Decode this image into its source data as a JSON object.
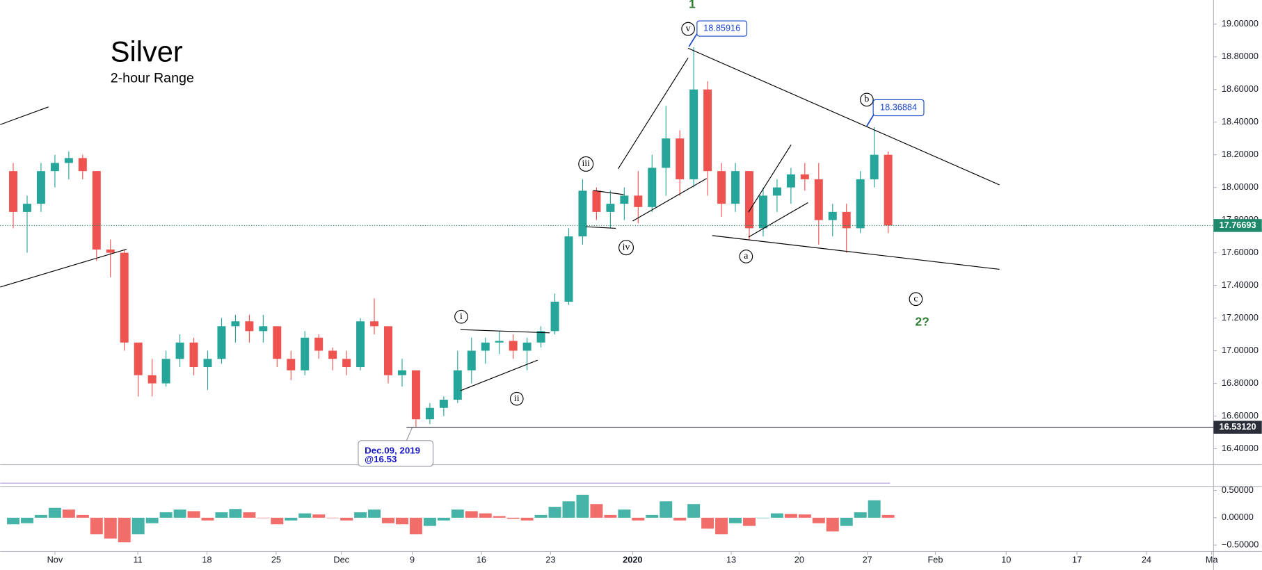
{
  "chart_data": {
    "type": "candlestick",
    "title": "Silver",
    "subtitle": "2-hour Range",
    "x": [
      -3,
      -2,
      -1,
      0,
      1,
      2,
      3,
      4,
      5,
      6,
      7,
      8,
      9,
      10,
      11,
      12,
      13,
      14,
      15,
      16,
      17,
      18,
      19,
      20,
      21,
      22,
      23,
      24,
      25,
      26,
      27,
      28,
      29,
      30,
      31,
      32,
      33,
      34,
      35,
      36,
      37,
      38,
      39,
      40,
      41,
      42,
      43,
      44,
      45,
      46,
      47,
      48,
      49,
      50,
      51,
      52,
      53,
      54,
      55,
      56,
      57,
      58,
      59,
      60
    ],
    "open": [
      18.1,
      17.85,
      17.9,
      18.1,
      18.15,
      18.18,
      18.1,
      17.62,
      17.6,
      17.05,
      16.85,
      16.8,
      16.95,
      17.05,
      16.9,
      16.95,
      17.15,
      17.18,
      17.12,
      17.15,
      16.95,
      16.88,
      17.08,
      17.0,
      16.95,
      16.9,
      17.18,
      17.15,
      16.85,
      16.88,
      16.58,
      16.65,
      16.7,
      16.88,
      17.0,
      17.05,
      17.06,
      17.0,
      17.05,
      17.12,
      17.3,
      17.7,
      17.98,
      17.85,
      17.9,
      17.95,
      17.88,
      18.12,
      18.3,
      18.05,
      18.6,
      18.1,
      17.9,
      18.1,
      17.75,
      17.95,
      18.0,
      18.08,
      18.05,
      17.8,
      17.85,
      17.75,
      18.05,
      18.2
    ],
    "high": [
      18.15,
      17.95,
      18.15,
      18.2,
      18.22,
      18.2,
      18.1,
      17.68,
      17.62,
      17.05,
      16.95,
      17.0,
      17.1,
      17.08,
      17.0,
      17.2,
      17.22,
      17.22,
      17.22,
      17.15,
      17.0,
      17.12,
      17.1,
      17.02,
      17.0,
      17.2,
      17.32,
      17.15,
      16.95,
      16.88,
      16.68,
      16.72,
      17.0,
      17.08,
      17.08,
      17.12,
      17.1,
      17.08,
      17.15,
      17.35,
      17.75,
      18.05,
      18.0,
      17.98,
      18.0,
      18.1,
      18.2,
      18.5,
      18.35,
      18.85916,
      18.65,
      18.15,
      18.15,
      18.1,
      18.0,
      18.05,
      18.12,
      18.15,
      18.15,
      17.9,
      17.9,
      18.1,
      18.36884,
      18.22
    ],
    "low": [
      17.75,
      17.6,
      17.85,
      18.0,
      18.05,
      18.05,
      17.55,
      17.45,
      17.0,
      16.72,
      16.72,
      16.78,
      16.9,
      16.85,
      16.76,
      16.92,
      17.05,
      17.05,
      17.05,
      16.9,
      16.82,
      16.85,
      16.95,
      16.88,
      16.85,
      16.88,
      17.1,
      16.8,
      16.78,
      16.53,
      16.55,
      16.6,
      16.68,
      16.8,
      16.92,
      16.98,
      16.95,
      16.88,
      17.02,
      17.1,
      17.28,
      17.65,
      17.8,
      17.75,
      17.8,
      17.78,
      17.85,
      17.95,
      17.95,
      18.0,
      17.95,
      17.82,
      17.85,
      17.68,
      17.7,
      17.85,
      17.9,
      17.98,
      17.65,
      17.7,
      17.6,
      17.72,
      18.0,
      17.72
    ],
    "close": [
      17.85,
      17.9,
      18.1,
      18.15,
      18.18,
      18.1,
      17.62,
      17.6,
      17.05,
      16.85,
      16.8,
      16.95,
      17.05,
      16.9,
      16.95,
      17.15,
      17.18,
      17.12,
      17.15,
      16.95,
      16.88,
      17.08,
      17.0,
      16.95,
      16.9,
      17.18,
      17.15,
      16.85,
      16.88,
      16.58,
      16.65,
      16.7,
      16.88,
      17.0,
      17.05,
      17.06,
      17.0,
      17.05,
      17.12,
      17.3,
      17.7,
      17.98,
      17.85,
      17.9,
      17.95,
      17.88,
      18.12,
      18.3,
      18.05,
      18.6,
      18.1,
      17.9,
      18.1,
      17.75,
      17.95,
      18.0,
      18.08,
      18.05,
      17.8,
      17.85,
      17.75,
      18.05,
      18.2,
      17.76693
    ],
    "up_color": "#26a69a",
    "down_color": "#ef5350",
    "xlim": [
      -3.94,
      83.43
    ],
    "xticks": [
      {
        "value": 0,
        "label": "Nov"
      },
      {
        "value": 5.97,
        "label": "11"
      },
      {
        "value": 10.95,
        "label": "18"
      },
      {
        "value": 15.93,
        "label": "25"
      },
      {
        "value": 20.63,
        "label": "Dec"
      },
      {
        "value": 25.73,
        "label": "9"
      },
      {
        "value": 30.71,
        "label": "16"
      },
      {
        "value": 35.69,
        "label": "23"
      },
      {
        "value": 41.6,
        "label": "2020"
      },
      {
        "value": 48.7,
        "label": "13"
      },
      {
        "value": 53.6,
        "label": "20"
      },
      {
        "value": 58.5,
        "label": "27"
      },
      {
        "value": 63.4,
        "label": "Feb"
      },
      {
        "value": 68.5,
        "label": "10"
      },
      {
        "value": 73.6,
        "label": "17"
      },
      {
        "value": 78.6,
        "label": "24"
      },
      {
        "value": 83.3,
        "label": "Ma"
      }
    ],
    "ylim": [
      16.302,
      19.148
    ],
    "yticks": [
      {
        "value": 19.0,
        "label": "19.00000"
      },
      {
        "value": 18.8,
        "label": "18.80000"
      },
      {
        "value": 18.6,
        "label": "18.60000"
      },
      {
        "value": 18.4,
        "label": "18.40000"
      },
      {
        "value": 18.2,
        "label": "18.20000"
      },
      {
        "value": 18.0,
        "label": "18.00000"
      },
      {
        "value": 17.8,
        "label": "17.80000"
      },
      {
        "value": 17.6,
        "label": "17.60000"
      },
      {
        "value": 17.4,
        "label": "17.40000"
      },
      {
        "value": 17.2,
        "label": "17.20000"
      },
      {
        "value": 17.0,
        "label": "17.00000"
      },
      {
        "value": 16.8,
        "label": "16.80000"
      },
      {
        "value": 16.6,
        "label": "16.60000"
      },
      {
        "value": 16.4,
        "label": "16.40000"
      }
    ],
    "grid": false,
    "last_price": 17.76693,
    "last_price_color": "#1e8a6b",
    "support": {
      "value": 16.5312,
      "label": "16.53120"
    },
    "support_color": "#2a2e39",
    "peak_label": 18.85916,
    "b_label": 18.36884,
    "low_callout": [
      "Dec.09, 2019",
      "@16.53"
    ],
    "wave_labels": {
      "wave_1": "1",
      "v": "v",
      "b": "b",
      "iii": "iii",
      "iv": "iv",
      "i": "i",
      "ii": "ii",
      "a": "a",
      "c": "c",
      "wave_2": "2?"
    },
    "oscillator": {
      "type": "histogram",
      "values": [
        -0.12,
        -0.1,
        0.05,
        0.18,
        0.15,
        0.05,
        -0.3,
        -0.38,
        -0.45,
        -0.3,
        -0.1,
        0.1,
        0.15,
        0.12,
        -0.05,
        0.1,
        0.16,
        0.1,
        0.0,
        -0.12,
        -0.05,
        0.08,
        0.06,
        0.0,
        -0.05,
        0.1,
        0.15,
        -0.1,
        -0.12,
        -0.3,
        -0.15,
        -0.05,
        0.15,
        0.12,
        0.08,
        0.03,
        -0.02,
        -0.05,
        0.05,
        0.2,
        0.3,
        0.42,
        0.25,
        0.05,
        0.15,
        -0.05,
        0.05,
        0.3,
        -0.05,
        0.25,
        -0.2,
        -0.3,
        -0.1,
        -0.15,
        0.0,
        0.08,
        0.07,
        0.06,
        -0.1,
        -0.25,
        -0.15,
        0.1,
        0.32,
        0.05
      ],
      "ylim": [
        -0.618,
        0.559
      ],
      "yticks": [
        {
          "value": 0.5,
          "label": "0.50000"
        },
        {
          "value": 0,
          "label": "0.00000"
        },
        {
          "value": -0.5,
          "label": "−0.50000"
        }
      ]
    }
  }
}
